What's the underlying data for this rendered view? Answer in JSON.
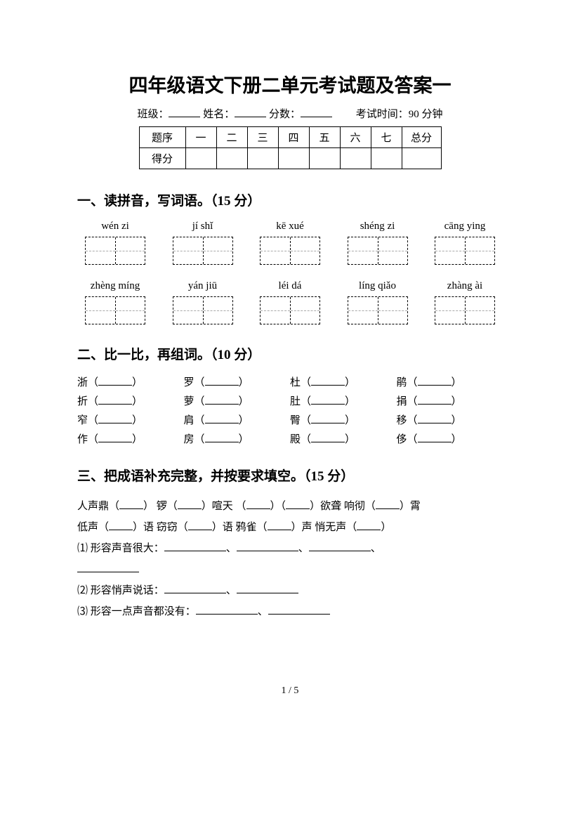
{
  "title": "四年级语文下册二单元考试题及答案一",
  "info": {
    "class_label": "班级：",
    "name_label": "姓名：",
    "score_label": "分数：",
    "time_label": "考试时间：90 分钟"
  },
  "score_table": {
    "row_labels": [
      "题序",
      "得分"
    ],
    "cols": [
      "一",
      "二",
      "三",
      "四",
      "五",
      "六",
      "七"
    ],
    "total": "总分"
  },
  "q1": {
    "heading": "一、读拼音，写词语。（15 分）",
    "row1": [
      "wén zi",
      "jí shǐ",
      "kē xué",
      "shéng zi",
      "cāng ying"
    ],
    "row2": [
      "zhèng míng",
      "yán jiū",
      "léi dá",
      "líng qiǎo",
      "zhàng ài"
    ]
  },
  "q2": {
    "heading": "二、比一比，再组词。（10 分）",
    "rows": [
      [
        "浙",
        "罗",
        "杜",
        "鹃"
      ],
      [
        "折",
        "萝",
        "肚",
        "捐"
      ],
      [
        "窄",
        "肩",
        "臀",
        "移"
      ],
      [
        "作",
        "房",
        "殿",
        "侈"
      ]
    ]
  },
  "q3": {
    "heading": "三、把成语补充完整，并按要求填空。（15 分）",
    "line1a": "人声鼎（",
    "line1b": "）  锣（",
    "line1c": "）喧天  （",
    "line1d": "）（",
    "line1e": "）欲聋   响彻（",
    "line1f": "）霄",
    "line2a": "低声（",
    "line2b": "）语   窃窃（",
    "line2c": "）语  鸦雀（",
    "line2d": "）声   悄无声（",
    "line2e": "）",
    "sub1": "⑴ 形容声音很大：",
    "sub2": "⑵ 形容悄声说话：",
    "sub3": "⑶ 形容一点声音都没有："
  },
  "pagenum": "1 / 5"
}
